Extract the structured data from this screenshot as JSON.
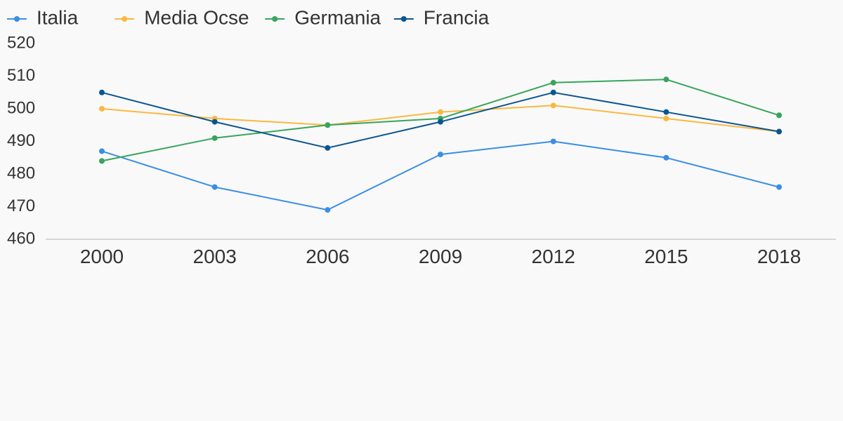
{
  "colors": {
    "background": "#f9f9f9",
    "axis": "#d6d6d6",
    "text": "#333333"
  },
  "chart_data": {
    "type": "line",
    "categories": [
      "2000",
      "2003",
      "2006",
      "2009",
      "2012",
      "2015",
      "2018"
    ],
    "ylim": [
      460,
      520
    ],
    "yticks": [
      "460",
      "470",
      "480",
      "490",
      "500",
      "510",
      "520"
    ],
    "grid": false,
    "legend_position": "top-left",
    "title": "",
    "xlabel": "",
    "ylabel": "",
    "series": [
      {
        "name": "Italia",
        "color": "#3a8ee6",
        "values": [
          487,
          476,
          469,
          486,
          490,
          485,
          476
        ]
      },
      {
        "name": "Media Ocse",
        "color": "#f9b93f",
        "values": [
          500,
          497,
          495,
          499,
          501,
          497,
          493
        ]
      },
      {
        "name": "Germania",
        "color": "#37a55b",
        "values": [
          484,
          491,
          495,
          497,
          508,
          509,
          498
        ]
      },
      {
        "name": "Francia",
        "color": "#0b5591",
        "values": [
          505,
          496,
          488,
          496,
          505,
          499,
          493
        ]
      }
    ]
  }
}
